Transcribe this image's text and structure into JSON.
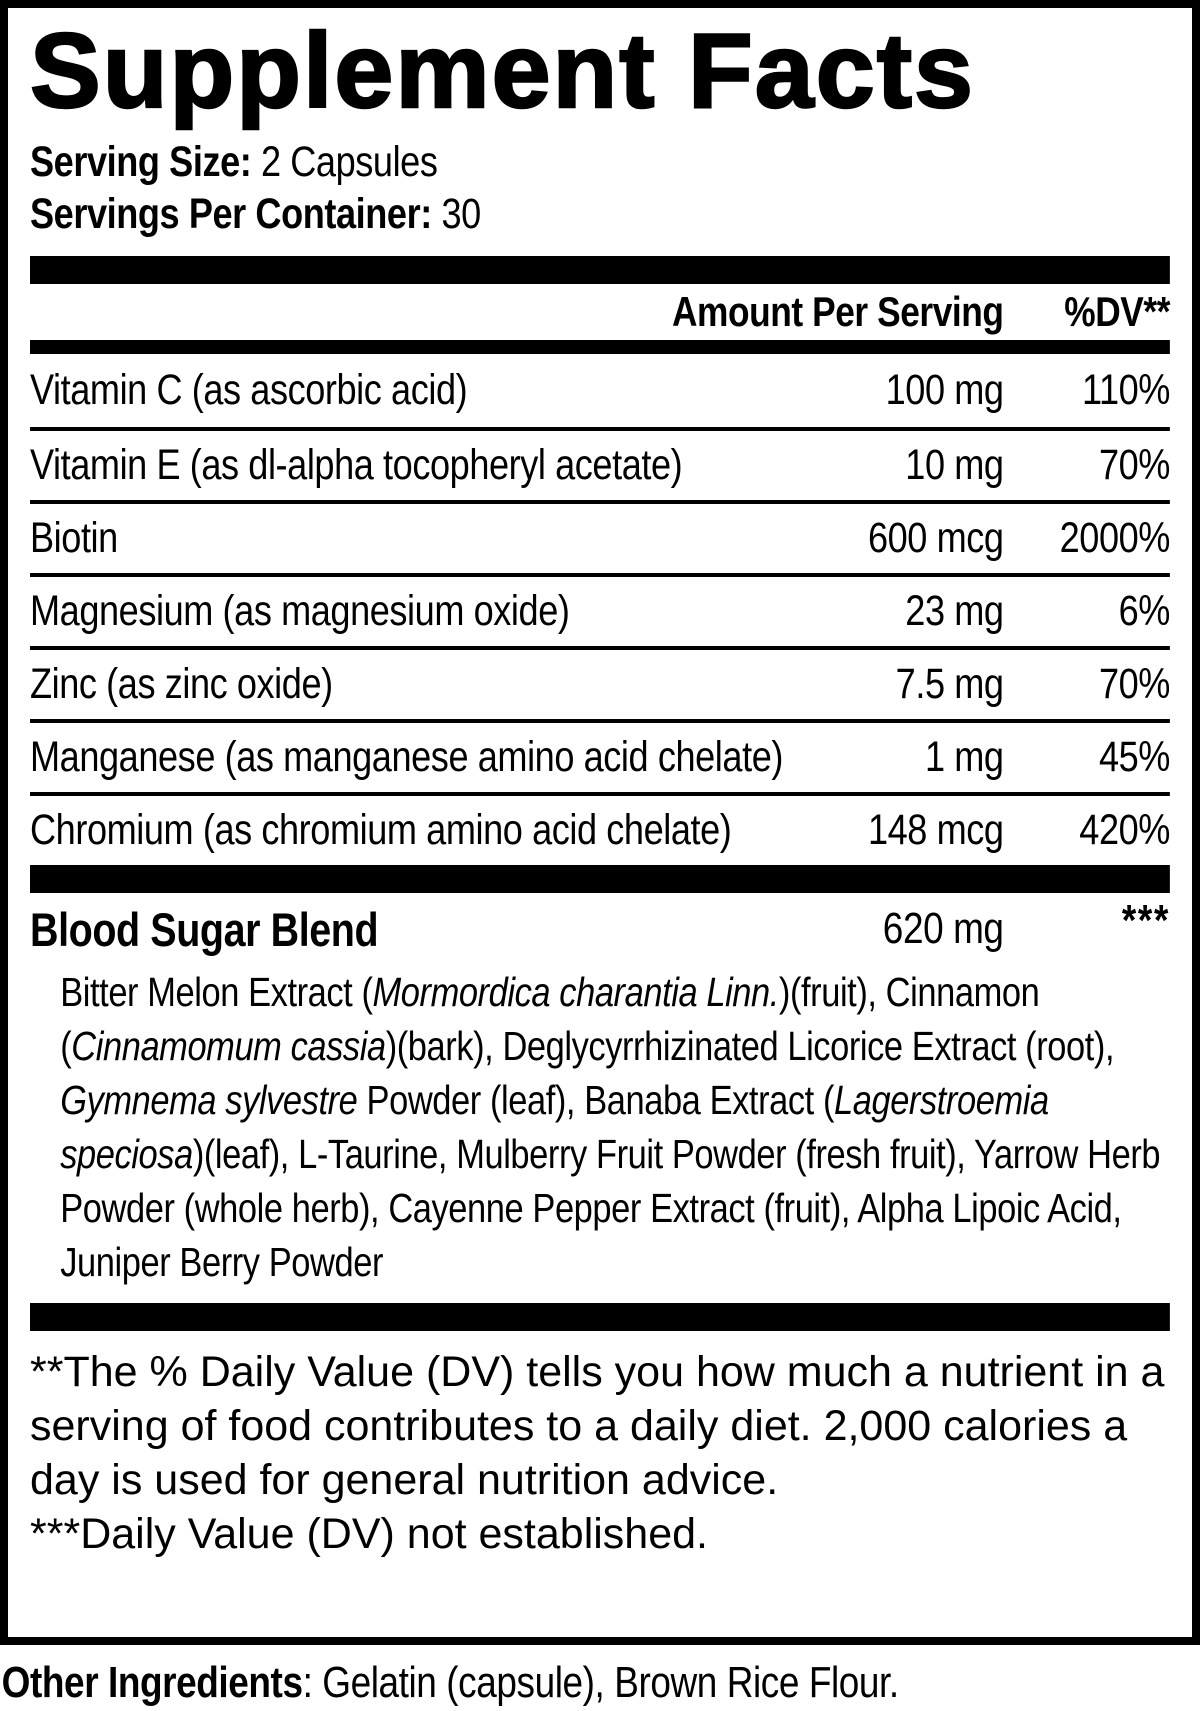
{
  "colors": {
    "text": "#000000",
    "background": "#ffffff"
  },
  "title": "Supplement Facts",
  "serving_info": {
    "size_label": "Serving Size:",
    "size_value": "2 Capsules",
    "per_container_label": "Servings Per Container:",
    "per_container_value": "30"
  },
  "table": {
    "amount_header": "Amount Per Serving",
    "dv_header": "%DV**",
    "rows": [
      {
        "name": "Vitamin C (as ascorbic acid)",
        "amount": "100 mg",
        "dv": "110%"
      },
      {
        "name": "Vitamin E (as dl-alpha tocopheryl acetate)",
        "amount": "10 mg",
        "dv": "70%"
      },
      {
        "name": "Biotin",
        "amount": "600 mcg",
        "dv": "2000%"
      },
      {
        "name": "Magnesium (as magnesium oxide)",
        "amount": "23 mg",
        "dv": "6%"
      },
      {
        "name": "Zinc (as zinc oxide)",
        "amount": "7.5 mg",
        "dv": "70%"
      },
      {
        "name": "Manganese (as manganese amino acid chelate)",
        "amount": "1 mg",
        "dv": "45%"
      },
      {
        "name": "Chromium (as chromium amino acid chelate)",
        "amount": "148 mcg",
        "dv": "420%"
      }
    ]
  },
  "blend": {
    "name": "Blood Sugar Blend",
    "amount": "620 mg",
    "dv": "***",
    "ingredients_segments": [
      {
        "text": "Bitter Melon Extract (",
        "italic": false
      },
      {
        "text": "Mormordica charantia Linn.",
        "italic": true
      },
      {
        "text": ")(fruit), Cinnamon (",
        "italic": false
      },
      {
        "text": "Cinnamomum cassia",
        "italic": true
      },
      {
        "text": ")(bark), Deglycyrrhizinated Licorice Extract (root), ",
        "italic": false
      },
      {
        "text": "Gymnema sylvestre",
        "italic": true
      },
      {
        "text": " Powder (leaf), Banaba Extract (",
        "italic": false
      },
      {
        "text": "Lagerstroemia speciosa",
        "italic": true
      },
      {
        "text": ")(leaf), L-Taurine, Mulberry Fruit Powder (fresh fruit), Yarrow Herb Powder (whole herb), Cayenne Pepper Extract (fruit), Alpha Lipoic Acid, Juniper Berry Powder",
        "italic": false
      }
    ]
  },
  "footnotes": {
    "dv_note": "**The % Daily Value (DV) tells you how much a nutrient in a serving of food contributes to a daily diet. 2,000 calories a day is used for general nutrition advice.",
    "not_established_note": "***Daily Value (DV) not established."
  },
  "other_ingredients": {
    "label": "Other Ingredients",
    "value": ": Gelatin (capsule), Brown Rice Flour."
  }
}
